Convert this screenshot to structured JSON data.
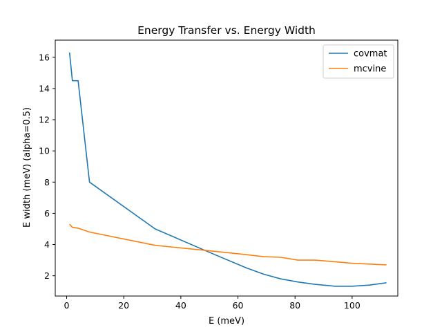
{
  "chart_data": {
    "type": "line",
    "title": "Energy Transfer vs. Energy Width",
    "xlabel": "E (meV)",
    "ylabel": "E width (meV) (alpha=0.5)",
    "xlim": [
      -4,
      116
    ],
    "ylim": [
      0.7,
      17.1
    ],
    "xticks": [
      0,
      20,
      40,
      60,
      80,
      100
    ],
    "yticks": [
      2,
      4,
      6,
      8,
      10,
      12,
      14,
      16
    ],
    "grid": false,
    "legend_position": "top-right",
    "series": [
      {
        "name": "covmat",
        "color": "#1f77b4",
        "x": [
          1,
          2,
          4,
          8,
          31,
          50,
          63,
          69,
          75,
          81,
          87,
          94,
          100,
          106,
          112
        ],
        "y": [
          16.3,
          14.5,
          14.5,
          8.0,
          5.0,
          3.5,
          2.5,
          2.1,
          1.8,
          1.6,
          1.45,
          1.33,
          1.33,
          1.4,
          1.55
        ]
      },
      {
        "name": "mcvine",
        "color": "#ff7f0e",
        "x": [
          1,
          2,
          4,
          8,
          31,
          50,
          63,
          69,
          75,
          81,
          87,
          94,
          100,
          106,
          112
        ],
        "y": [
          5.3,
          5.1,
          5.05,
          4.8,
          3.95,
          3.6,
          3.35,
          3.22,
          3.18,
          3.0,
          3.0,
          2.9,
          2.8,
          2.75,
          2.7
        ]
      }
    ]
  }
}
